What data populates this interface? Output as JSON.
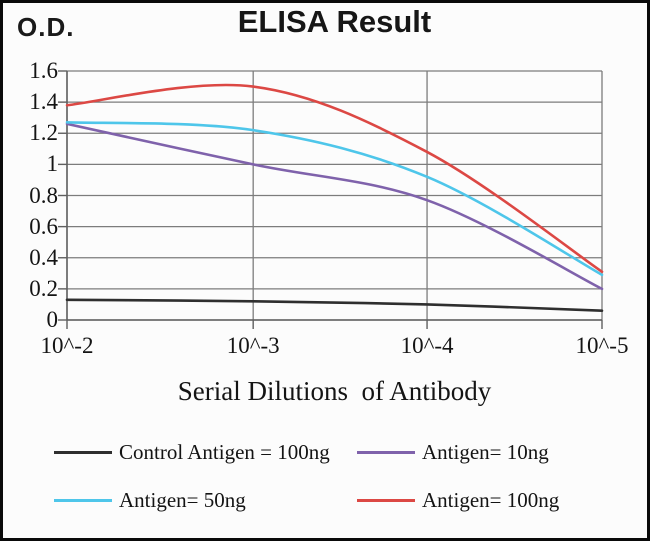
{
  "chart_data": {
    "type": "line",
    "title": "ELISA Result",
    "ylabel": "O.D.",
    "xlabel": "Serial Dilutions  of Antibody",
    "categories": [
      "10^-2",
      "10^-3",
      "10^-4",
      "10^-5"
    ],
    "y_tick_labels": [
      "1.6",
      "1.4",
      "1.2",
      "1",
      "0.8",
      "0.6",
      "0.4",
      "0.2",
      "0"
    ],
    "ylim": [
      0,
      1.6
    ],
    "grid": true,
    "legend_position": "bottom",
    "series": [
      {
        "name": "Control Antigen = 100ng",
        "color": "#2f2f2f",
        "values": [
          0.13,
          0.12,
          0.1,
          0.06
        ]
      },
      {
        "name": "Antigen= 10ng",
        "color": "#7f62ab",
        "values": [
          1.26,
          1.0,
          0.77,
          0.2
        ]
      },
      {
        "name": "Antigen= 50ng",
        "color": "#4ec6ea",
        "values": [
          1.27,
          1.22,
          0.92,
          0.29
        ]
      },
      {
        "name": "Antigen= 100ng",
        "color": "#dc4844",
        "values": [
          1.38,
          1.5,
          1.08,
          0.31
        ]
      }
    ],
    "colors": {
      "grid": "#7c7c7c",
      "axis": "#5f5f5f",
      "text": "#141414"
    }
  }
}
